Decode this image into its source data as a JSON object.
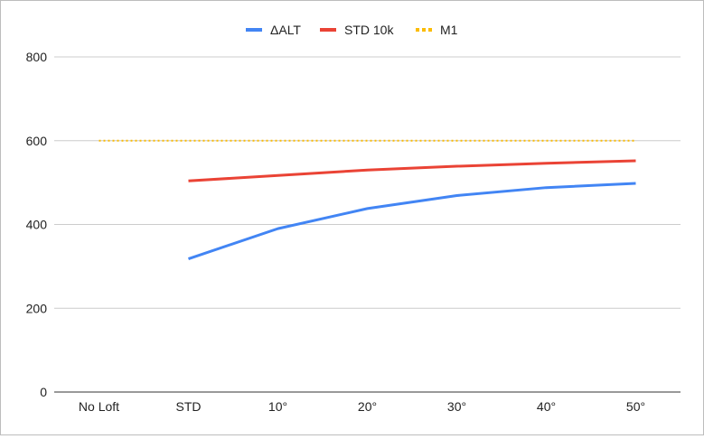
{
  "chart_data": {
    "type": "line",
    "title": "",
    "xlabel": "",
    "ylabel": "",
    "categories": [
      "No Loft",
      "STD",
      "10°",
      "20°",
      "30°",
      "40°",
      "50°"
    ],
    "ylim": [
      0,
      800
    ],
    "yticks": [
      0,
      200,
      400,
      600,
      800
    ],
    "ytick_labels": [
      "0",
      "200",
      "400",
      "600",
      "800"
    ],
    "grid": true,
    "legend_position": "top-center",
    "series": [
      {
        "name": "ΔALT",
        "color": "#4285f4",
        "style": "solid",
        "values": [
          null,
          318,
          390,
          438,
          469,
          488,
          498
        ]
      },
      {
        "name": "STD 10k",
        "color": "#ea4335",
        "style": "solid",
        "values": [
          null,
          504,
          517,
          530,
          539,
          546,
          552
        ]
      },
      {
        "name": "M1",
        "color": "#fbbc04",
        "style": "dotted",
        "values": [
          600,
          600,
          600,
          600,
          600,
          600,
          600
        ]
      }
    ]
  }
}
